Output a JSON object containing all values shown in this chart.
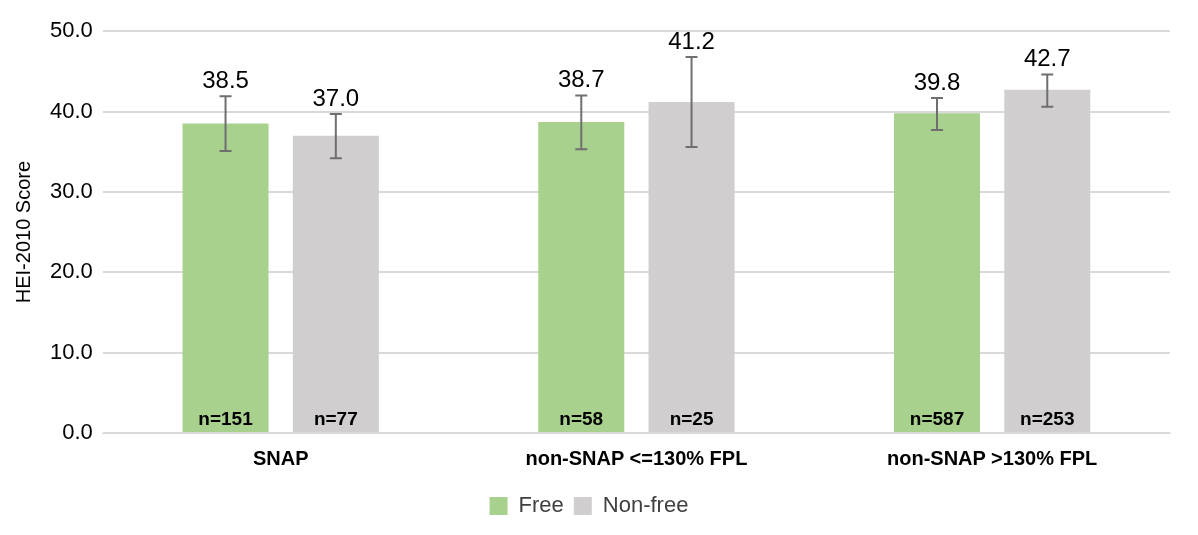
{
  "chart_data": {
    "type": "bar",
    "ylabel": "HEI-2010 Score",
    "categories": [
      "SNAP",
      "non-SNAP <=130% FPL",
      "non-SNAP >130% FPL"
    ],
    "series": [
      {
        "name": "Free",
        "color": "#a9d18e",
        "values": [
          38.5,
          38.7,
          39.8
        ],
        "value_labels": [
          "38.5",
          "38.7",
          "39.8"
        ],
        "errors": [
          [
            35.1,
            41.9
          ],
          [
            35.3,
            42.0
          ],
          [
            37.7,
            41.7
          ]
        ]
      },
      {
        "name": "Non-free",
        "color": "#d0cece",
        "values": [
          37.0,
          41.2,
          42.7
        ],
        "value_labels": [
          "37.0",
          "41.2",
          "42.7"
        ],
        "errors": [
          [
            34.2,
            39.7
          ],
          [
            35.6,
            46.8
          ],
          [
            40.6,
            44.6
          ]
        ]
      }
    ],
    "ylim": [
      0,
      50
    ],
    "yticks": [
      {
        "value": 0,
        "label": "0.0"
      },
      {
        "value": 10,
        "label": "10.0"
      },
      {
        "value": 20,
        "label": "20.0"
      },
      {
        "value": 30,
        "label": "30.0"
      },
      {
        "value": 40,
        "label": "40.0"
      },
      {
        "value": 50,
        "label": "50.0"
      }
    ],
    "grid": "y",
    "legend": "bottom",
    "annotations": [
      "n=151",
      "n=58",
      "n=587",
      "n=77",
      "n=25",
      "n=253"
    ]
  }
}
